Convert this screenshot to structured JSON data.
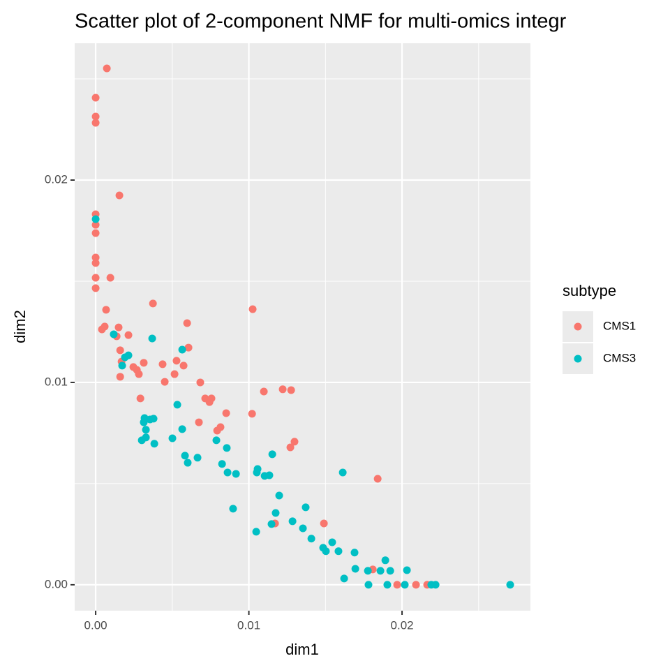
{
  "chart_data": {
    "type": "scatter",
    "title": "Scatter plot of 2-component NMF for multi-omics integr",
    "x_label": "dim1",
    "y_label": "dim2",
    "legend_title": "subtype",
    "legend_position": "right",
    "xlim": [
      -0.00137,
      0.02838
    ],
    "ylim": [
      -0.00128,
      0.02676
    ],
    "xticks": [
      {
        "value": 0,
        "label": "0.00"
      },
      {
        "value": 0.01,
        "label": "0.01"
      },
      {
        "value": 0.02,
        "label": "0.02"
      }
    ],
    "yticks": [
      {
        "value": 0,
        "label": "0.00"
      },
      {
        "value": 0.01,
        "label": "0.01"
      },
      {
        "value": 0.02,
        "label": "0.02"
      }
    ],
    "minor_xticks": [
      0.005,
      0.015,
      0.025
    ],
    "minor_yticks": [
      0.005,
      0.015,
      0.025
    ],
    "grid": true,
    "series": [
      {
        "name": "CMS1",
        "color": "#f8766d",
        "x": [
          0.00073,
          0,
          0,
          0,
          0.00155,
          0,
          0,
          0,
          0,
          0,
          0,
          0.00096,
          0,
          0.00068,
          0.00374,
          0.01025,
          0.00041,
          0.00059,
          0.0015,
          0.00137,
          0.00214,
          0.00597,
          0.00606,
          0.0016,
          0.00169,
          0.00314,
          0.00437,
          0.00528,
          0.00574,
          0.00246,
          0.00269,
          0.00282,
          0.0016,
          0.00451,
          0.00515,
          0.00683,
          0.01098,
          0.01221,
          0.01276,
          0.00292,
          0.00715,
          0.00743,
          0.00756,
          0.00852,
          0.01021,
          0.00674,
          0.00815,
          0.00793,
          0.01298,
          0.01271,
          0.01841,
          0.01171,
          0.0149,
          0.01809,
          0.01968,
          0.02091,
          0.02164
        ],
        "values": [
          0.02552,
          0.02407,
          0.02314,
          0.02283,
          0.01924,
          0.01831,
          0.01779,
          0.01738,
          0.01617,
          0.0159,
          0.01517,
          0.01517,
          0.01466,
          0.01359,
          0.0139,
          0.01362,
          0.01262,
          0.01276,
          0.01272,
          0.01228,
          0.01234,
          0.01293,
          0.01172,
          0.01159,
          0.01103,
          0.01097,
          0.0109,
          0.01107,
          0.01083,
          0.01076,
          0.01062,
          0.01041,
          0.01028,
          0.01003,
          0.01041,
          0.01,
          0.00955,
          0.00966,
          0.00962,
          0.00921,
          0.00921,
          0.00903,
          0.00921,
          0.00848,
          0.00845,
          0.00803,
          0.00779,
          0.00762,
          0.00707,
          0.00679,
          0.00524,
          0.00303,
          0.00303,
          0.00076,
          0,
          0,
          0
        ]
      },
      {
        "name": "CMS3",
        "color": "#00bfc4",
        "x": [
          0,
          0.00118,
          0.00369,
          0.00565,
          0.00214,
          0.00191,
          0.00173,
          0.00533,
          0.00319,
          0.00355,
          0.00378,
          0.00314,
          0.00565,
          0.00328,
          0.00301,
          0.00328,
          0.00383,
          0.00501,
          0.00788,
          0.00856,
          0.00583,
          0.00601,
          0.00665,
          0.00825,
          0.01153,
          0.01057,
          0.01052,
          0.00861,
          0.00916,
          0.01103,
          0.01134,
          0.01613,
          0.01198,
          0.00897,
          0.01371,
          0.01175,
          0.01048,
          0.01148,
          0.01285,
          0.01353,
          0.01408,
          0.01544,
          0.01485,
          0.01503,
          0.01585,
          0.0169,
          0.01891,
          0.01695,
          0.01777,
          0.01859,
          0.01923,
          0.02032,
          0.01622,
          0.01781,
          0.01904,
          0.02018,
          0.02191,
          0.02219,
          0.02706
        ],
        "values": [
          0.01807,
          0.01238,
          0.01217,
          0.01162,
          0.01134,
          0.01124,
          0.01083,
          0.0089,
          0.00824,
          0.00817,
          0.00821,
          0.00803,
          0.00769,
          0.00766,
          0.00714,
          0.00728,
          0.00697,
          0.00724,
          0.00714,
          0.00676,
          0.00638,
          0.00603,
          0.00628,
          0.00597,
          0.00645,
          0.00572,
          0.00555,
          0.00555,
          0.00548,
          0.00538,
          0.00541,
          0.00555,
          0.00441,
          0.00376,
          0.00383,
          0.00355,
          0.00262,
          0.003,
          0.00314,
          0.00279,
          0.00228,
          0.0021,
          0.00183,
          0.00166,
          0.00166,
          0.00159,
          0.00121,
          0.00079,
          0.00069,
          0.00069,
          0.00069,
          0.00072,
          0.00031,
          0,
          0,
          0,
          0,
          0,
          0
        ]
      }
    ]
  }
}
